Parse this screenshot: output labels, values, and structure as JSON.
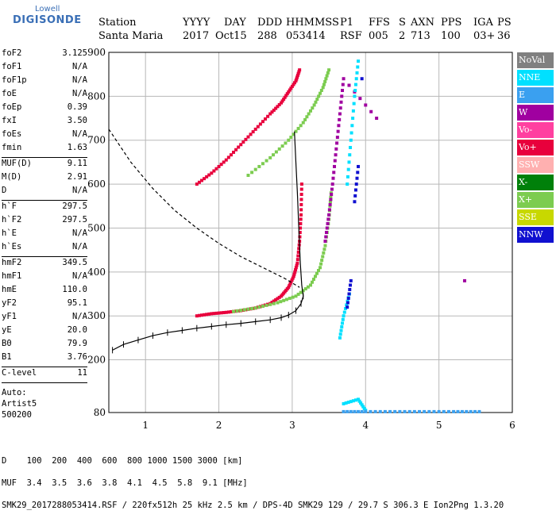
{
  "logo": {
    "line1": "Lowell",
    "line2": "DIGISONDE"
  },
  "header": {
    "labels": [
      "Station",
      "YYYY",
      "DAY",
      "DDD",
      "HHMMSS",
      "P1",
      "FFS",
      "S",
      "AXN",
      "PPS",
      "IGA",
      "PS"
    ],
    "values": [
      "Santa Maria",
      "2017",
      "Oct15",
      "288",
      "053414",
      "RSF",
      "005",
      "2",
      "713",
      "100",
      "03+",
      "36"
    ]
  },
  "params": [
    {
      "group": [
        {
          "name": "foF2",
          "value": "3.125"
        },
        {
          "name": "foF1",
          "value": "N/A"
        },
        {
          "name": "foF1p",
          "value": "N/A"
        },
        {
          "name": "foE",
          "value": "N/A"
        },
        {
          "name": "foEp",
          "value": "0.39"
        },
        {
          "name": "fxI",
          "value": "3.50"
        },
        {
          "name": "foEs",
          "value": "N/A"
        },
        {
          "name": "fmin",
          "value": "1.63"
        }
      ]
    },
    {
      "group": [
        {
          "name": "MUF(D)",
          "value": "9.11"
        },
        {
          "name": "M(D)",
          "value": "2.91"
        },
        {
          "name": "D",
          "value": "N/A"
        }
      ]
    },
    {
      "group": [
        {
          "name": "h`F",
          "value": "297.5"
        },
        {
          "name": "h`F2",
          "value": "297.5"
        },
        {
          "name": "h`E",
          "value": "N/A"
        },
        {
          "name": "h`Es",
          "value": "N/A"
        }
      ]
    },
    {
      "group": [
        {
          "name": "hmF2",
          "value": "349.5"
        },
        {
          "name": "hmF1",
          "value": "N/A"
        },
        {
          "name": "hmE",
          "value": "110.0"
        },
        {
          "name": "yF2",
          "value": "95.1"
        },
        {
          "name": "yF1",
          "value": "N/A"
        },
        {
          "name": "yE",
          "value": "20.0"
        },
        {
          "name": "B0",
          "value": "79.9"
        },
        {
          "name": "B1",
          "value": "3.76"
        }
      ]
    },
    {
      "group": [
        {
          "name": "C-level",
          "value": "11"
        }
      ]
    }
  ],
  "auto": [
    "Auto:",
    "Artist5",
    "500200"
  ],
  "legend": [
    {
      "label": "NoVal",
      "color": "#808080"
    },
    {
      "label": "NNE",
      "color": "#00e0ff"
    },
    {
      "label": "E",
      "color": "#3aa0f0"
    },
    {
      "label": "W",
      "color": "#a000a0"
    },
    {
      "label": "Vo-",
      "color": "#ff40a0"
    },
    {
      "label": "Vo+",
      "color": "#e8003c"
    },
    {
      "label": "SSW",
      "color": "#ffb0b0"
    },
    {
      "label": "X-",
      "color": "#00800a"
    },
    {
      "label": "X+",
      "color": "#7ccc50"
    },
    {
      "label": "SSE",
      "color": "#c8d800"
    },
    {
      "label": "NNW",
      "color": "#1010d0"
    }
  ],
  "footer": {
    "line1": "D    100  200  400  600  800 1000 1500 3000 [km]",
    "line2": "MUF  3.4  3.5  3.6  3.8  4.1  4.5  5.8  9.1 [MHz]",
    "line3": "SMK29_2017288053414.RSF / 220fx512h 25 kHz 2.5 km / DPS-4D SMK29 129 / 29.7 S 306.3 E Ion2Png 1.3.20"
  },
  "chart_data": {
    "type": "scatter",
    "xlim": [
      0.5,
      6.0
    ],
    "ylim": [
      80,
      900
    ],
    "xticks": [
      1,
      2,
      3,
      4,
      5,
      6
    ],
    "yticks": [
      80,
      200,
      300,
      400,
      500,
      600,
      700,
      800,
      900
    ],
    "grid": true,
    "series": [
      {
        "name": "Vo+",
        "color": "#e8003c",
        "points": [
          [
            1.7,
            300
          ],
          [
            1.9,
            305
          ],
          [
            2.1,
            308
          ],
          [
            2.3,
            312
          ],
          [
            2.5,
            318
          ],
          [
            2.7,
            328
          ],
          [
            2.85,
            345
          ],
          [
            2.95,
            365
          ],
          [
            3.02,
            390
          ],
          [
            3.07,
            420
          ],
          [
            3.1,
            470
          ],
          [
            3.12,
            530
          ],
          [
            3.13,
            600
          ],
          [
            1.7,
            600
          ],
          [
            1.9,
            625
          ],
          [
            2.1,
            655
          ],
          [
            2.3,
            690
          ],
          [
            2.5,
            725
          ],
          [
            2.7,
            760
          ],
          [
            2.85,
            785
          ],
          [
            2.95,
            810
          ],
          [
            3.05,
            835
          ],
          [
            3.1,
            860
          ]
        ]
      },
      {
        "name": "X+",
        "color": "#7ccc50",
        "points": [
          [
            2.2,
            310
          ],
          [
            2.5,
            318
          ],
          [
            2.8,
            330
          ],
          [
            3.05,
            345
          ],
          [
            3.25,
            370
          ],
          [
            3.38,
            410
          ],
          [
            3.45,
            460
          ],
          [
            3.5,
            520
          ],
          [
            3.53,
            580
          ],
          [
            2.4,
            620
          ],
          [
            2.7,
            660
          ],
          [
            2.95,
            700
          ],
          [
            3.15,
            740
          ],
          [
            3.3,
            780
          ],
          [
            3.42,
            820
          ],
          [
            3.5,
            860
          ]
        ]
      },
      {
        "name": "W",
        "color": "#a000a0",
        "points": [
          [
            3.45,
            470
          ],
          [
            3.5,
            530
          ],
          [
            3.55,
            600
          ],
          [
            3.6,
            680
          ],
          [
            3.65,
            760
          ],
          [
            3.7,
            840
          ],
          [
            4.15,
            750
          ],
          [
            5.35,
            380
          ]
        ]
      },
      {
        "name": "NNE",
        "color": "#00e0ff",
        "points": [
          [
            3.65,
            250
          ],
          [
            3.7,
            300
          ],
          [
            3.78,
            350
          ],
          [
            3.75,
            600
          ],
          [
            3.8,
            700
          ],
          [
            3.85,
            800
          ],
          [
            3.9,
            880
          ],
          [
            3.7,
            100
          ],
          [
            3.9,
            110
          ],
          [
            4.0,
            85
          ]
        ]
      },
      {
        "name": "NNW",
        "color": "#1010d0",
        "points": [
          [
            3.75,
            320
          ],
          [
            3.8,
            380
          ],
          [
            3.85,
            560
          ],
          [
            3.9,
            640
          ],
          [
            3.95,
            840
          ]
        ]
      },
      {
        "name": "E",
        "color": "#3aa0f0",
        "points": [
          [
            3.7,
            82
          ],
          [
            4.0,
            82
          ],
          [
            4.4,
            82
          ],
          [
            4.8,
            82
          ],
          [
            5.2,
            82
          ],
          [
            5.55,
            82
          ]
        ]
      }
    ],
    "hline": {
      "color": "#000000",
      "points": [
        [
          0.55,
          222
        ],
        [
          0.7,
          235
        ],
        [
          0.9,
          245
        ],
        [
          1.1,
          255
        ],
        [
          1.3,
          262
        ],
        [
          1.5,
          267
        ],
        [
          1.7,
          272
        ],
        [
          1.9,
          276
        ],
        [
          2.1,
          280
        ],
        [
          2.3,
          283
        ],
        [
          2.5,
          287
        ],
        [
          2.7,
          291
        ],
        [
          2.85,
          296
        ],
        [
          2.95,
          302
        ],
        [
          3.05,
          312
        ],
        [
          3.12,
          328
        ],
        [
          3.15,
          345
        ]
      ]
    },
    "profile": {
      "color": "#000000",
      "points": [
        [
          3.15,
          345
        ],
        [
          3.13,
          370
        ],
        [
          3.11,
          420
        ],
        [
          3.09,
          500
        ],
        [
          3.07,
          580
        ],
        [
          3.05,
          650
        ],
        [
          3.03,
          720
        ]
      ]
    },
    "muf_curve": {
      "color": "#000000",
      "points": [
        [
          0.5,
          725
        ],
        [
          0.8,
          650
        ],
        [
          1.1,
          590
        ],
        [
          1.4,
          540
        ],
        [
          1.7,
          500
        ],
        [
          2.0,
          465
        ],
        [
          2.3,
          435
        ],
        [
          2.6,
          410
        ],
        [
          2.9,
          385
        ],
        [
          3.1,
          365
        ]
      ]
    }
  }
}
